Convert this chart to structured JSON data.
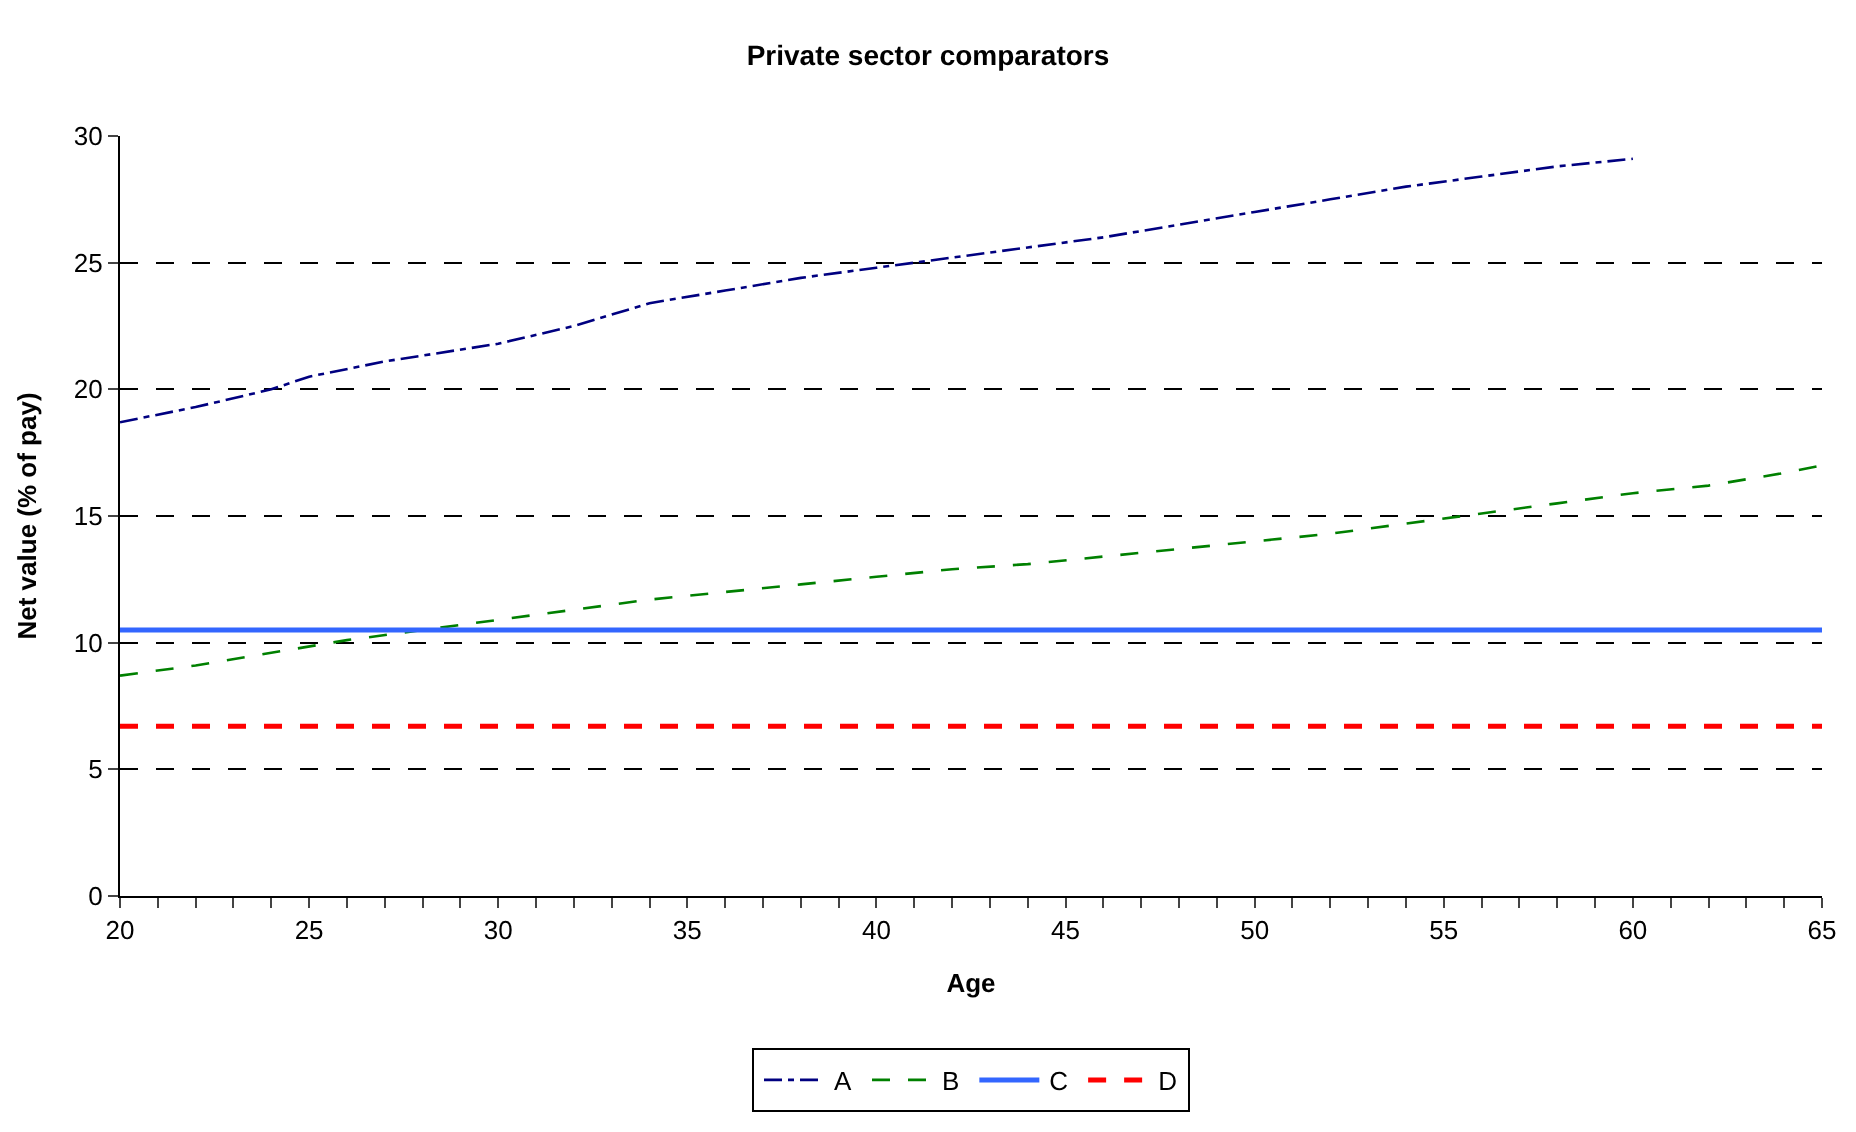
{
  "chart_data": {
    "type": "line",
    "title": "Private sector comparators",
    "xlabel": "Age",
    "ylabel": "Net value (% of pay)",
    "series": [
      {
        "name": "A",
        "color": "#000080",
        "line_style": "dashdot",
        "x": [
          20,
          22,
          24,
          25,
          27,
          30,
          32,
          34,
          36,
          38,
          40,
          42,
          44,
          46,
          48,
          50,
          52,
          54,
          56,
          58,
          60
        ],
        "values": [
          18.7,
          19.3,
          20.0,
          20.5,
          21.1,
          21.8,
          22.5,
          23.4,
          23.9,
          24.4,
          24.8,
          25.2,
          25.6,
          26.0,
          26.5,
          27.0,
          27.5,
          28.0,
          28.4,
          28.8,
          29.1
        ]
      },
      {
        "name": "B",
        "color": "#008000",
        "line_style": "dashed",
        "x": [
          20,
          22,
          24,
          26,
          28,
          30,
          32,
          34,
          36,
          38,
          40,
          42,
          44,
          46,
          48,
          50,
          52,
          54,
          56,
          58,
          60,
          62,
          64,
          65
        ],
        "values": [
          8.7,
          9.1,
          9.6,
          10.1,
          10.5,
          10.9,
          11.3,
          11.7,
          12.0,
          12.3,
          12.6,
          12.9,
          13.1,
          13.4,
          13.7,
          14.0,
          14.3,
          14.7,
          15.1,
          15.5,
          15.9,
          16.2,
          16.7,
          17.0
        ]
      },
      {
        "name": "C",
        "color": "#3366ff",
        "line_style": "solid",
        "x": [
          20,
          65
        ],
        "values": [
          10.5,
          10.5
        ]
      },
      {
        "name": "D",
        "color": "#ff0000",
        "line_style": "dashed",
        "x": [
          20,
          65
        ],
        "values": [
          6.7,
          6.7
        ]
      }
    ],
    "xlim": [
      20,
      65
    ],
    "xticks": [
      20,
      {
        "value": 21,
        "label": null
      },
      {
        "value": 22,
        "label": null
      },
      {
        "value": 23,
        "label": null
      },
      {
        "value": 24,
        "label": null
      },
      25,
      {
        "value": 26,
        "label": null
      },
      {
        "value": 27,
        "label": null
      },
      {
        "value": 28,
        "label": null
      },
      {
        "value": 29,
        "label": null
      },
      30,
      {
        "value": 31,
        "label": null
      },
      {
        "value": 32,
        "label": null
      },
      {
        "value": 33,
        "label": null
      },
      {
        "value": 34,
        "label": null
      },
      35,
      {
        "value": 36,
        "label": null
      },
      {
        "value": 37,
        "label": null
      },
      {
        "value": 38,
        "label": null
      },
      {
        "value": 39,
        "label": null
      },
      40,
      {
        "value": 41,
        "label": null
      },
      {
        "value": 42,
        "label": null
      },
      {
        "value": 43,
        "label": null
      },
      {
        "value": 44,
        "label": null
      },
      45,
      {
        "value": 46,
        "label": null
      },
      {
        "value": 47,
        "label": null
      },
      {
        "value": 48,
        "label": null
      },
      {
        "value": 49,
        "label": null
      },
      50,
      {
        "value": 51,
        "label": null
      },
      {
        "value": 52,
        "label": null
      },
      {
        "value": 53,
        "label": null
      },
      {
        "value": 54,
        "label": null
      },
      55,
      {
        "value": 56,
        "label": null
      },
      {
        "value": 57,
        "label": null
      },
      {
        "value": 58,
        "label": null
      },
      {
        "value": 59,
        "label": null
      },
      60,
      {
        "value": 61,
        "label": null
      },
      {
        "value": 62,
        "label": null
      },
      {
        "value": 63,
        "label": null
      },
      {
        "value": 64,
        "label": null
      },
      65
    ],
    "ylim": [
      0,
      30
    ],
    "yticks": [
      0,
      5,
      10,
      15,
      20,
      25,
      30
    ],
    "grid": "y",
    "legend": "bottom",
    "marker": "none"
  }
}
